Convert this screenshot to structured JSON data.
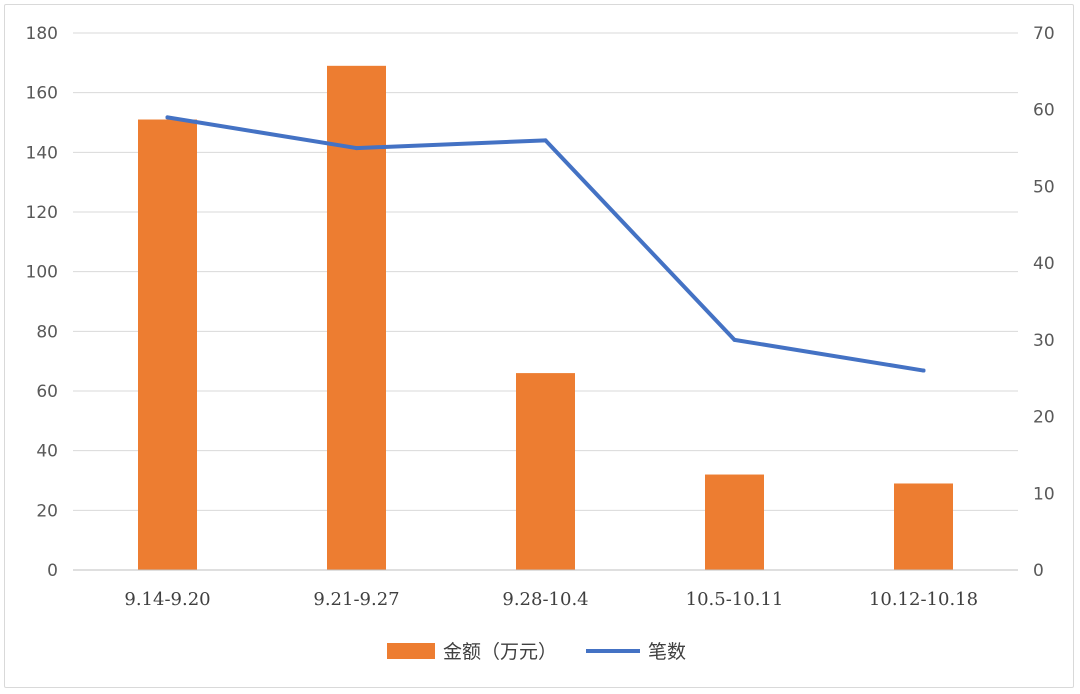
{
  "chart_data": {
    "type": "bar",
    "categories": [
      "9.14-9.20",
      "9.21-9.27",
      "9.28-10.4",
      "10.5-10.11",
      "10.12-10.18"
    ],
    "series": [
      {
        "name": "金额（万元）",
        "type": "bar",
        "axis": "left",
        "color": "#ED7D31",
        "values": [
          151,
          169,
          66,
          32,
          29
        ]
      },
      {
        "name": "笔数",
        "type": "line",
        "axis": "right",
        "color": "#4472C4",
        "values": [
          59,
          55,
          56,
          30,
          26
        ]
      }
    ],
    "y_left": {
      "ylim": [
        0,
        180
      ],
      "ticks": [
        0,
        20,
        40,
        60,
        80,
        100,
        120,
        140,
        160,
        180
      ]
    },
    "y_right": {
      "ylim": [
        0,
        70
      ],
      "ticks": [
        0,
        10,
        20,
        30,
        40,
        50,
        60,
        70
      ]
    },
    "grid": true,
    "legend_position": "bottom"
  }
}
